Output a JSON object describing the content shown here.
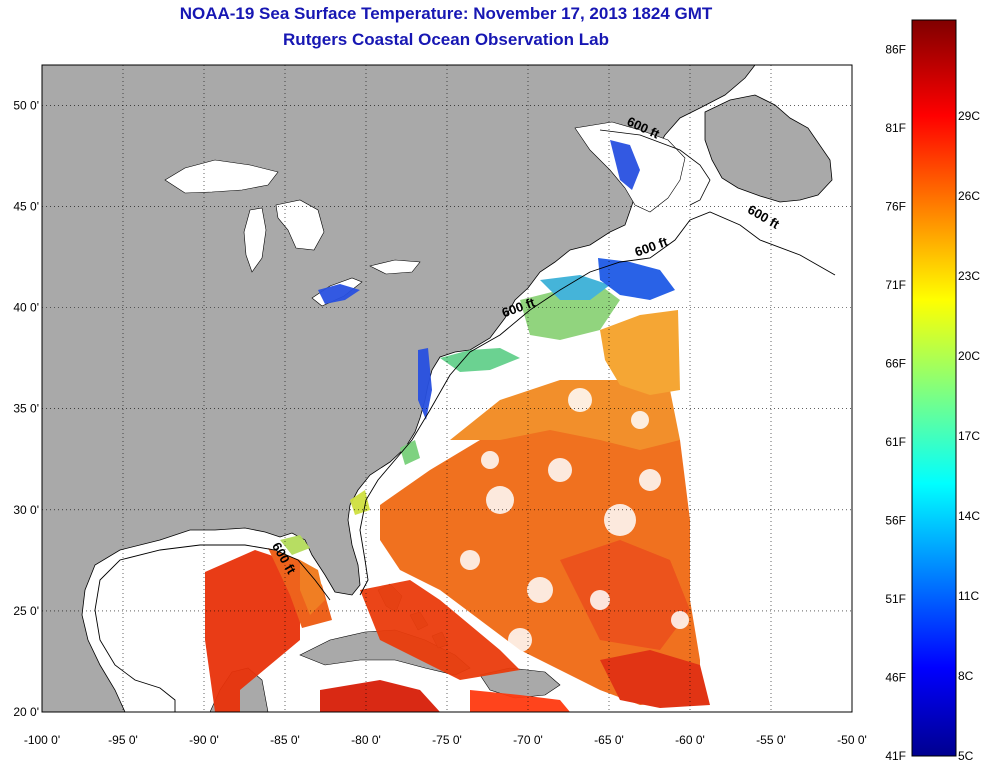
{
  "title": "NOAA-19 Sea Surface Temperature:  November 17, 2013 1824 GMT",
  "subtitle": "Rutgers Coastal Ocean Observation Lab",
  "map": {
    "lon_range": [
      -100,
      -50
    ],
    "lat_range": [
      20,
      52
    ],
    "lon_ticks": [
      {
        "value": -100,
        "label": "-100 0'"
      },
      {
        "value": -95,
        "label": "-95 0'"
      },
      {
        "value": -90,
        "label": "-90 0'"
      },
      {
        "value": -85,
        "label": "-85 0'"
      },
      {
        "value": -80,
        "label": "-80 0'"
      },
      {
        "value": -75,
        "label": "-75 0'"
      },
      {
        "value": -70,
        "label": "-70 0'"
      },
      {
        "value": -65,
        "label": "-65 0'"
      },
      {
        "value": -60,
        "label": "-60 0'"
      },
      {
        "value": -55,
        "label": "-55 0'"
      },
      {
        "value": -50,
        "label": "-50 0'"
      }
    ],
    "lat_ticks": [
      {
        "value": 20,
        "label": "20 0'"
      },
      {
        "value": 25,
        "label": "25 0'"
      },
      {
        "value": 30,
        "label": "30 0'"
      },
      {
        "value": 35,
        "label": "35 0'"
      },
      {
        "value": 40,
        "label": "40 0'"
      },
      {
        "value": 45,
        "label": "45 0'"
      },
      {
        "value": 50,
        "label": "50 0'"
      }
    ],
    "grid": true,
    "land_color": "#a9a9a9",
    "contour_label": "600 ft",
    "contour_labels": [
      {
        "lon": -63,
        "lat": 48.7,
        "text": "600 ft"
      },
      {
        "lon": -55.6,
        "lat": 44.3,
        "text": "600 ft"
      },
      {
        "lon": -62.3,
        "lat": 42.8,
        "text": "600 ft"
      },
      {
        "lon": -70.5,
        "lat": 39.8,
        "text": "600 ft"
      },
      {
        "lon": -85.3,
        "lat": 27.5,
        "text": "600 ft"
      }
    ]
  },
  "colorbar": {
    "min_c": 5,
    "max_c": 31,
    "f_labels": [
      "41F",
      "46F",
      "51F",
      "56F",
      "61F",
      "66F",
      "71F",
      "76F",
      "81F",
      "86F"
    ],
    "c_labels": [
      "5C",
      "8C",
      "11C",
      "14C",
      "17C",
      "20C",
      "23C",
      "26C",
      "29C"
    ]
  }
}
